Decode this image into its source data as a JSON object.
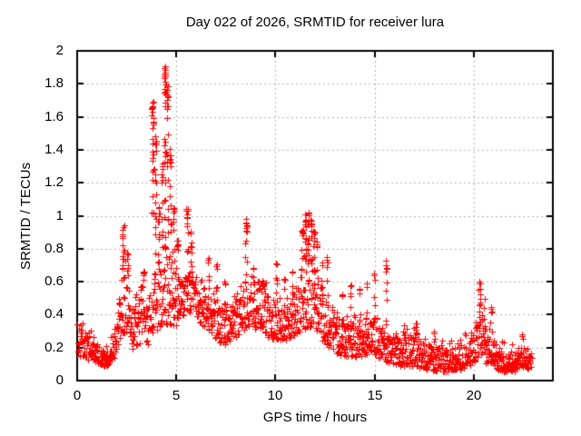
{
  "window": {
    "background": "#ffffff",
    "text_color": "#000000"
  },
  "chart_data": {
    "type": "scatter",
    "title": "Day 022 of 2026, SRMTID for receiver lura",
    "xlabel": "GPS time / hours",
    "ylabel": "SRMTID / TECUs",
    "xlim": [
      0,
      24
    ],
    "ylim": [
      0,
      2
    ],
    "xticks": [
      0,
      5,
      10,
      15,
      20
    ],
    "xtick_labels": [
      "0",
      "5",
      "10",
      "15",
      "20"
    ],
    "yticks": [
      0,
      0.2,
      0.4,
      0.6,
      0.8,
      1,
      1.2,
      1.4,
      1.6,
      1.8,
      2
    ],
    "ytick_labels": [
      "0",
      "0.2",
      "0.4",
      "0.6",
      "0.8",
      "1",
      "1.2",
      "1.4",
      "1.6",
      "1.8",
      "2"
    ],
    "grid": true,
    "legend": "none",
    "marker": "plus",
    "marker_size": 7,
    "marker_color": "#ff0000",
    "grid_color": "#b0b0b0",
    "axis_color": "#000000",
    "data_start_hour": 0.02,
    "data_end_hour": 22.95,
    "sample_step_hours": 0.014,
    "seed": 20260122,
    "band_envelope_t_lo_hi": [
      [
        0.0,
        0.13,
        0.38
      ],
      [
        0.3,
        0.14,
        0.3
      ],
      [
        0.7,
        0.12,
        0.27
      ],
      [
        1.1,
        0.1,
        0.22
      ],
      [
        1.5,
        0.08,
        0.18
      ],
      [
        1.8,
        0.12,
        0.26
      ],
      [
        2.1,
        0.2,
        0.45
      ],
      [
        2.35,
        0.28,
        0.72
      ],
      [
        2.55,
        0.3,
        0.6
      ],
      [
        2.8,
        0.18,
        0.42
      ],
      [
        3.1,
        0.22,
        0.5
      ],
      [
        3.35,
        0.25,
        0.6
      ],
      [
        3.6,
        0.2,
        0.45
      ],
      [
        3.85,
        0.28,
        0.68
      ],
      [
        4.1,
        0.32,
        0.72
      ],
      [
        4.45,
        0.35,
        0.78
      ],
      [
        4.7,
        0.32,
        0.68
      ],
      [
        5.0,
        0.32,
        0.62
      ],
      [
        5.3,
        0.38,
        0.6
      ],
      [
        5.6,
        0.4,
        0.66
      ],
      [
        5.9,
        0.42,
        0.62
      ],
      [
        6.2,
        0.35,
        0.58
      ],
      [
        6.6,
        0.3,
        0.52
      ],
      [
        7.0,
        0.25,
        0.5
      ],
      [
        7.4,
        0.2,
        0.42
      ],
      [
        7.8,
        0.24,
        0.46
      ],
      [
        8.2,
        0.28,
        0.52
      ],
      [
        8.5,
        0.3,
        0.6
      ],
      [
        8.8,
        0.32,
        0.62
      ],
      [
        9.1,
        0.28,
        0.56
      ],
      [
        9.4,
        0.3,
        0.58
      ],
      [
        9.7,
        0.25,
        0.48
      ],
      [
        10.0,
        0.25,
        0.45
      ],
      [
        10.4,
        0.24,
        0.44
      ],
      [
        10.8,
        0.25,
        0.46
      ],
      [
        11.1,
        0.28,
        0.55
      ],
      [
        11.4,
        0.3,
        0.7
      ],
      [
        11.7,
        0.32,
        0.73
      ],
      [
        12.0,
        0.3,
        0.64
      ],
      [
        12.3,
        0.25,
        0.52
      ],
      [
        12.6,
        0.2,
        0.45
      ],
      [
        13.0,
        0.16,
        0.36
      ],
      [
        13.4,
        0.15,
        0.34
      ],
      [
        13.8,
        0.15,
        0.36
      ],
      [
        14.2,
        0.14,
        0.34
      ],
      [
        14.6,
        0.15,
        0.36
      ],
      [
        15.0,
        0.16,
        0.4
      ],
      [
        15.4,
        0.12,
        0.3
      ],
      [
        15.8,
        0.1,
        0.28
      ],
      [
        16.2,
        0.09,
        0.26
      ],
      [
        16.6,
        0.08,
        0.26
      ],
      [
        17.0,
        0.09,
        0.28
      ],
      [
        17.4,
        0.07,
        0.23
      ],
      [
        17.8,
        0.06,
        0.22
      ],
      [
        18.2,
        0.06,
        0.2
      ],
      [
        18.6,
        0.05,
        0.18
      ],
      [
        19.0,
        0.06,
        0.2
      ],
      [
        19.4,
        0.07,
        0.22
      ],
      [
        19.8,
        0.09,
        0.26
      ],
      [
        20.1,
        0.12,
        0.32
      ],
      [
        20.35,
        0.15,
        0.42
      ],
      [
        20.6,
        0.1,
        0.28
      ],
      [
        20.9,
        0.1,
        0.3
      ],
      [
        21.2,
        0.06,
        0.2
      ],
      [
        21.6,
        0.05,
        0.17
      ],
      [
        22.0,
        0.05,
        0.17
      ],
      [
        22.4,
        0.07,
        0.2
      ],
      [
        22.7,
        0.06,
        0.17
      ],
      [
        22.95,
        0.08,
        0.16
      ]
    ],
    "spike_columns_t_top_halfwidth_count": [
      [
        2.33,
        0.93,
        0.05,
        16
      ],
      [
        2.55,
        0.78,
        0.04,
        8
      ],
      [
        3.35,
        0.66,
        0.03,
        6
      ],
      [
        3.82,
        1.7,
        0.06,
        28
      ],
      [
        3.96,
        1.5,
        0.04,
        16
      ],
      [
        4.12,
        1.05,
        0.04,
        10
      ],
      [
        4.28,
        1.32,
        0.04,
        12
      ],
      [
        4.43,
        1.9,
        0.05,
        34
      ],
      [
        4.56,
        1.8,
        0.04,
        20
      ],
      [
        4.7,
        1.42,
        0.05,
        16
      ],
      [
        4.86,
        1.05,
        0.04,
        10
      ],
      [
        5.05,
        0.85,
        0.04,
        8
      ],
      [
        5.55,
        1.05,
        0.05,
        14
      ],
      [
        5.72,
        0.92,
        0.04,
        8
      ],
      [
        6.62,
        0.75,
        0.03,
        6
      ],
      [
        7.02,
        0.7,
        0.03,
        6
      ],
      [
        7.45,
        0.6,
        0.03,
        5
      ],
      [
        8.52,
        0.97,
        0.04,
        12
      ],
      [
        8.9,
        0.68,
        0.03,
        5
      ],
      [
        9.35,
        0.66,
        0.03,
        6
      ],
      [
        10.05,
        0.75,
        0.03,
        7
      ],
      [
        10.45,
        0.62,
        0.03,
        5
      ],
      [
        10.85,
        0.66,
        0.03,
        6
      ],
      [
        11.35,
        0.92,
        0.04,
        10
      ],
      [
        11.52,
        1.0,
        0.04,
        14
      ],
      [
        11.66,
        1.02,
        0.04,
        14
      ],
      [
        11.8,
        0.97,
        0.04,
        12
      ],
      [
        11.95,
        0.9,
        0.04,
        10
      ],
      [
        12.1,
        0.84,
        0.03,
        8
      ],
      [
        12.35,
        0.72,
        0.03,
        6
      ],
      [
        12.62,
        0.75,
        0.03,
        7
      ],
      [
        13.4,
        0.55,
        0.03,
        4
      ],
      [
        13.8,
        0.6,
        0.03,
        5
      ],
      [
        14.25,
        0.58,
        0.03,
        5
      ],
      [
        14.6,
        0.62,
        0.03,
        5
      ],
      [
        15.0,
        0.65,
        0.03,
        6
      ],
      [
        15.6,
        0.73,
        0.035,
        10
      ],
      [
        16.5,
        0.34,
        0.03,
        4
      ],
      [
        17.1,
        0.34,
        0.03,
        5
      ],
      [
        18.0,
        0.3,
        0.03,
        3
      ],
      [
        20.3,
        0.62,
        0.04,
        12
      ],
      [
        20.55,
        0.5,
        0.03,
        5
      ],
      [
        20.9,
        0.45,
        0.03,
        5
      ],
      [
        22.45,
        0.28,
        0.03,
        4
      ]
    ]
  }
}
